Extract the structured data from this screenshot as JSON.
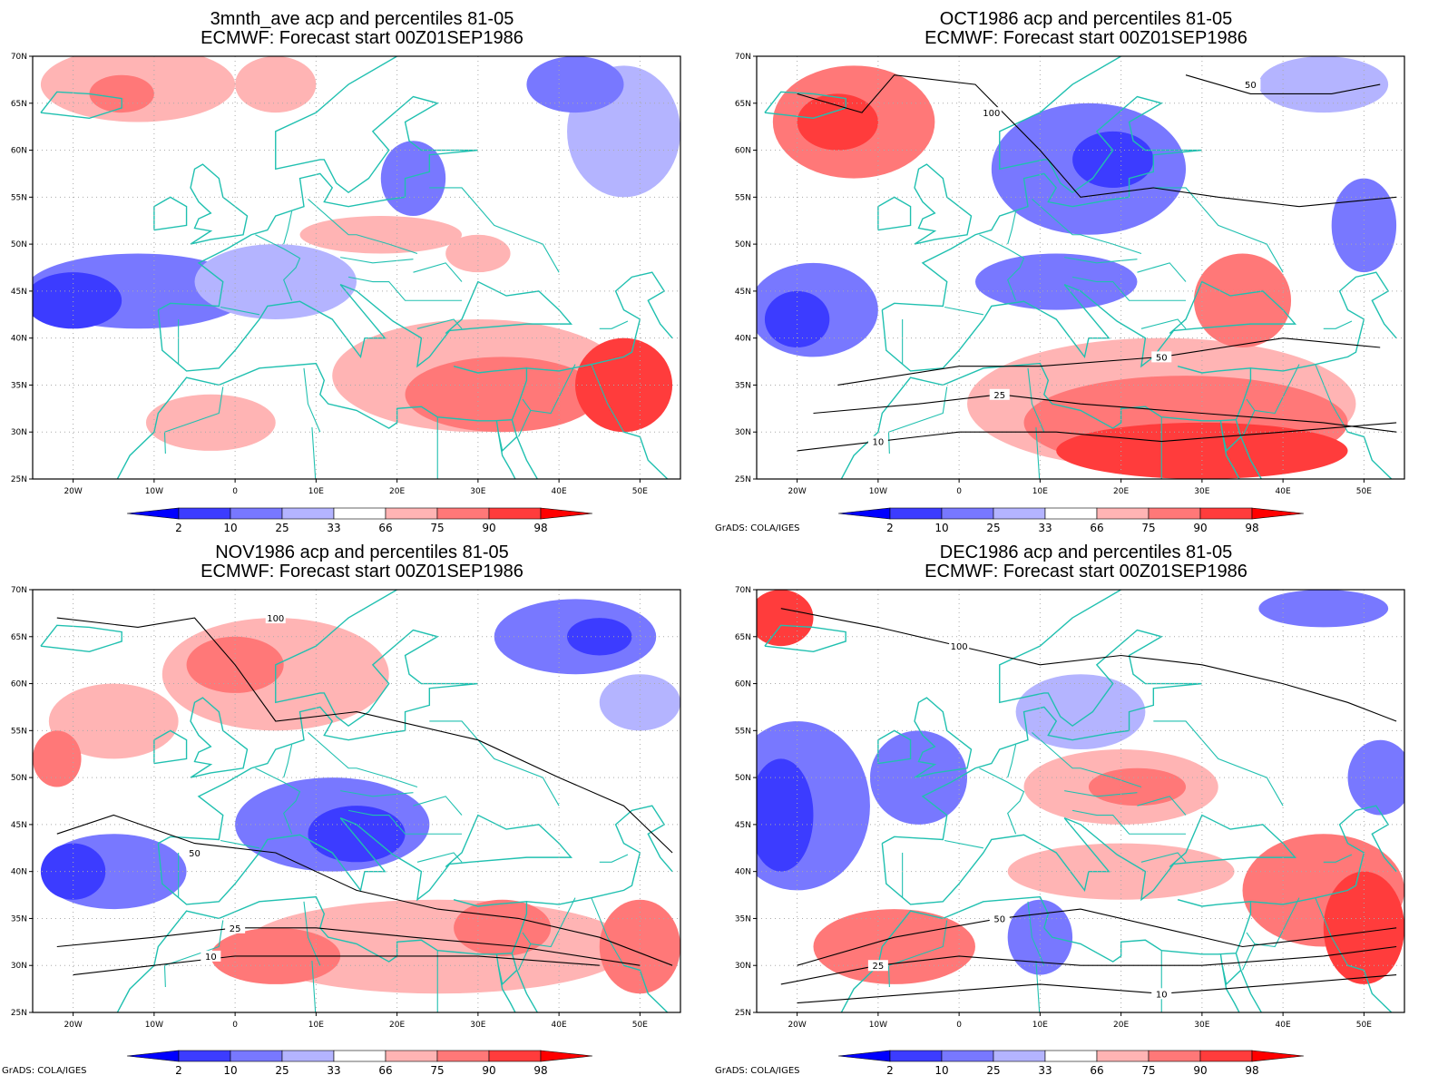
{
  "credit": "GrADS: COLA/IGES",
  "axes": {
    "lat_labels": [
      "70N",
      "65N",
      "60N",
      "55N",
      "50N",
      "45N",
      "40N",
      "35N",
      "30N",
      "25N"
    ],
    "lat_values": [
      70,
      65,
      60,
      55,
      50,
      45,
      40,
      35,
      30,
      25
    ],
    "lon_labels": [
      "20W",
      "10W",
      "0",
      "10E",
      "20E",
      "30E",
      "40E",
      "50E"
    ],
    "lon_values": [
      -20,
      -10,
      0,
      10,
      20,
      30,
      40,
      50
    ],
    "lon_range": [
      -25,
      55
    ],
    "lat_range": [
      25,
      70
    ],
    "grid": "dotted"
  },
  "colorbar": {
    "labels": [
      "2",
      "10",
      "25",
      "33",
      "66",
      "75",
      "90",
      "98"
    ],
    "colors": [
      "#0000ff",
      "#3c3cff",
      "#7878ff",
      "#b4b4ff",
      "#ffffff",
      "#ffb4b4",
      "#ff7878",
      "#ff3c3c",
      "#ff0000"
    ]
  },
  "panels": [
    {
      "title1": "3mnth_ave acp and percentiles 81-05",
      "title2": "ECMWF: Forecast start 00Z01SEP1986",
      "show_credit": false,
      "regions": [
        {
          "lon": -12,
          "lat": 45,
          "rx": 14,
          "ry": 4,
          "color": "#7878ff"
        },
        {
          "lon": -20,
          "lat": 44,
          "rx": 6,
          "ry": 3,
          "color": "#3c3cff"
        },
        {
          "lon": 5,
          "lat": 46,
          "rx": 10,
          "ry": 4,
          "color": "#b4b4ff"
        },
        {
          "lon": 22,
          "lat": 57,
          "rx": 4,
          "ry": 4,
          "color": "#7878ff"
        },
        {
          "lon": 48,
          "lat": 62,
          "rx": 7,
          "ry": 7,
          "color": "#b4b4ff"
        },
        {
          "lon": 42,
          "lat": 67,
          "rx": 6,
          "ry": 3,
          "color": "#7878ff"
        },
        {
          "lon": -12,
          "lat": 67,
          "rx": 12,
          "ry": 4,
          "color": "#ffb4b4"
        },
        {
          "lon": -14,
          "lat": 66,
          "rx": 4,
          "ry": 2,
          "color": "#ff7878"
        },
        {
          "lon": 5,
          "lat": 67,
          "rx": 5,
          "ry": 3,
          "color": "#ffb4b4"
        },
        {
          "lon": 30,
          "lat": 36,
          "rx": 18,
          "ry": 6,
          "color": "#ffb4b4"
        },
        {
          "lon": 33,
          "lat": 34,
          "rx": 12,
          "ry": 4,
          "color": "#ff7878"
        },
        {
          "lon": 48,
          "lat": 35,
          "rx": 6,
          "ry": 5,
          "color": "#ff3c3c"
        },
        {
          "lon": -3,
          "lat": 31,
          "rx": 8,
          "ry": 3,
          "color": "#ffb4b4"
        },
        {
          "lon": 18,
          "lat": 51,
          "rx": 10,
          "ry": 2,
          "color": "#ffb4b4"
        },
        {
          "lon": 30,
          "lat": 49,
          "rx": 4,
          "ry": 2,
          "color": "#ffb4b4"
        }
      ],
      "contours": []
    },
    {
      "title1": "OCT1986 acp and percentiles 81-05",
      "title2": "ECMWF: Forecast start 00Z01SEP1986",
      "show_credit": true,
      "regions": [
        {
          "lon": -13,
          "lat": 63,
          "rx": 10,
          "ry": 6,
          "color": "#ff7878"
        },
        {
          "lon": -15,
          "lat": 63,
          "rx": 5,
          "ry": 3,
          "color": "#ff3c3c"
        },
        {
          "lon": 16,
          "lat": 58,
          "rx": 12,
          "ry": 7,
          "color": "#7878ff"
        },
        {
          "lon": 19,
          "lat": 59,
          "rx": 5,
          "ry": 3,
          "color": "#3c3cff"
        },
        {
          "lon": -18,
          "lat": 43,
          "rx": 8,
          "ry": 5,
          "color": "#7878ff"
        },
        {
          "lon": -20,
          "lat": 42,
          "rx": 4,
          "ry": 3,
          "color": "#3c3cff"
        },
        {
          "lon": 12,
          "lat": 46,
          "rx": 10,
          "ry": 3,
          "color": "#7878ff"
        },
        {
          "lon": 25,
          "lat": 33,
          "rx": 24,
          "ry": 7,
          "color": "#ffb4b4"
        },
        {
          "lon": 28,
          "lat": 31,
          "rx": 20,
          "ry": 5,
          "color": "#ff7878"
        },
        {
          "lon": 30,
          "lat": 28,
          "rx": 18,
          "ry": 3,
          "color": "#ff3c3c"
        },
        {
          "lon": 35,
          "lat": 44,
          "rx": 6,
          "ry": 5,
          "color": "#ff7878"
        },
        {
          "lon": 50,
          "lat": 52,
          "rx": 4,
          "ry": 5,
          "color": "#7878ff"
        },
        {
          "lon": 45,
          "lat": 67,
          "rx": 8,
          "ry": 3,
          "color": "#b4b4ff"
        }
      ],
      "contours": [
        {
          "points": [
            [
              -20,
              66
            ],
            [
              -12,
              64
            ],
            [
              -8,
              68
            ],
            [
              2,
              67
            ],
            [
              10,
              60
            ],
            [
              15,
              55
            ],
            [
              24,
              56
            ],
            [
              32,
              55
            ],
            [
              42,
              54
            ],
            [
              54,
              55
            ]
          ],
          "label": "100",
          "label_at": [
            4,
            64
          ]
        },
        {
          "points": [
            [
              28,
              68
            ],
            [
              36,
              66
            ],
            [
              46,
              66
            ],
            [
              52,
              67
            ]
          ],
          "label": "50",
          "label_at": [
            36,
            67
          ]
        },
        {
          "points": [
            [
              -20,
              28
            ],
            [
              -10,
              29
            ],
            [
              0,
              30
            ],
            [
              12,
              30
            ],
            [
              25,
              29
            ],
            [
              40,
              30
            ],
            [
              54,
              31
            ]
          ],
          "label": "10",
          "label_at": [
            -10,
            29
          ]
        },
        {
          "points": [
            [
              -18,
              32
            ],
            [
              -5,
              33
            ],
            [
              5,
              34
            ],
            [
              15,
              33
            ],
            [
              30,
              32
            ],
            [
              45,
              31
            ],
            [
              54,
              30
            ]
          ],
          "label": "25",
          "label_at": [
            5,
            34
          ]
        },
        {
          "points": [
            [
              -15,
              35
            ],
            [
              0,
              37
            ],
            [
              10,
              37
            ],
            [
              25,
              38
            ],
            [
              40,
              40
            ],
            [
              52,
              39
            ]
          ],
          "label": "50",
          "label_at": [
            25,
            38
          ]
        }
      ]
    },
    {
      "title1": "NOV1986 acp and percentiles 81-05",
      "title2": "ECMWF: Forecast start 00Z01SEP1986",
      "show_credit": true,
      "regions": [
        {
          "lon": 5,
          "lat": 61,
          "rx": 14,
          "ry": 6,
          "color": "#ffb4b4"
        },
        {
          "lon": 0,
          "lat": 62,
          "rx": 6,
          "ry": 3,
          "color": "#ff7878"
        },
        {
          "lon": -15,
          "lat": 56,
          "rx": 8,
          "ry": 4,
          "color": "#ffb4b4"
        },
        {
          "lon": -22,
          "lat": 52,
          "rx": 3,
          "ry": 3,
          "color": "#ff7878"
        },
        {
          "lon": 12,
          "lat": 45,
          "rx": 12,
          "ry": 5,
          "color": "#7878ff"
        },
        {
          "lon": 15,
          "lat": 44,
          "rx": 6,
          "ry": 3,
          "color": "#3c3cff"
        },
        {
          "lon": -15,
          "lat": 40,
          "rx": 9,
          "ry": 4,
          "color": "#7878ff"
        },
        {
          "lon": -20,
          "lat": 40,
          "rx": 4,
          "ry": 3,
          "color": "#3c3cff"
        },
        {
          "lon": 42,
          "lat": 65,
          "rx": 10,
          "ry": 4,
          "color": "#7878ff"
        },
        {
          "lon": 45,
          "lat": 65,
          "rx": 4,
          "ry": 2,
          "color": "#3c3cff"
        },
        {
          "lon": 25,
          "lat": 32,
          "rx": 24,
          "ry": 5,
          "color": "#ffb4b4"
        },
        {
          "lon": 5,
          "lat": 31,
          "rx": 8,
          "ry": 3,
          "color": "#ff7878"
        },
        {
          "lon": 33,
          "lat": 34,
          "rx": 6,
          "ry": 3,
          "color": "#ff7878"
        },
        {
          "lon": 50,
          "lat": 32,
          "rx": 5,
          "ry": 5,
          "color": "#ff7878"
        },
        {
          "lon": 50,
          "lat": 58,
          "rx": 5,
          "ry": 3,
          "color": "#b4b4ff"
        }
      ],
      "contours": [
        {
          "points": [
            [
              -22,
              67
            ],
            [
              -12,
              66
            ],
            [
              -5,
              67
            ],
            [
              0,
              62
            ],
            [
              5,
              56
            ],
            [
              15,
              57
            ],
            [
              30,
              54
            ],
            [
              40,
              50
            ],
            [
              48,
              47
            ],
            [
              54,
              42
            ]
          ],
          "label": "100",
          "label_at": [
            5,
            67
          ]
        },
        {
          "points": [
            [
              -22,
              44
            ],
            [
              -15,
              46
            ],
            [
              -5,
              43
            ],
            [
              5,
              42
            ],
            [
              15,
              38
            ],
            [
              25,
              36
            ],
            [
              35,
              35
            ],
            [
              45,
              33
            ],
            [
              54,
              30
            ]
          ],
          "label": "50",
          "label_at": [
            -5,
            42
          ]
        },
        {
          "points": [
            [
              -22,
              32
            ],
            [
              -10,
              33
            ],
            [
              0,
              34
            ],
            [
              10,
              34
            ],
            [
              22,
              33
            ],
            [
              35,
              32
            ],
            [
              50,
              30
            ]
          ],
          "label": "25",
          "label_at": [
            0,
            34
          ]
        },
        {
          "points": [
            [
              -20,
              29
            ],
            [
              -10,
              30
            ],
            [
              0,
              31
            ],
            [
              15,
              31
            ],
            [
              30,
              31
            ],
            [
              45,
              30
            ]
          ],
          "label": "10",
          "label_at": [
            -3,
            31
          ]
        }
      ]
    },
    {
      "title1": "DEC1986 acp and percentiles 81-05",
      "title2": "ECMWF: Forecast start 00Z01SEP1986",
      "show_credit": true,
      "regions": [
        {
          "lon": -20,
          "lat": 47,
          "rx": 9,
          "ry": 9,
          "color": "#7878ff"
        },
        {
          "lon": -22,
          "lat": 46,
          "rx": 4,
          "ry": 6,
          "color": "#3c3cff"
        },
        {
          "lon": -5,
          "lat": 50,
          "rx": 6,
          "ry": 5,
          "color": "#7878ff"
        },
        {
          "lon": -22,
          "lat": 67,
          "rx": 4,
          "ry": 3,
          "color": "#ff3c3c"
        },
        {
          "lon": 15,
          "lat": 57,
          "rx": 8,
          "ry": 4,
          "color": "#b4b4ff"
        },
        {
          "lon": 45,
          "lat": 68,
          "rx": 8,
          "ry": 2,
          "color": "#7878ff"
        },
        {
          "lon": 20,
          "lat": 49,
          "rx": 12,
          "ry": 4,
          "color": "#ffb4b4"
        },
        {
          "lon": 22,
          "lat": 49,
          "rx": 6,
          "ry": 2,
          "color": "#ff7878"
        },
        {
          "lon": 20,
          "lat": 40,
          "rx": 14,
          "ry": 3,
          "color": "#ffb4b4"
        },
        {
          "lon": 45,
          "lat": 38,
          "rx": 10,
          "ry": 6,
          "color": "#ff7878"
        },
        {
          "lon": 50,
          "lat": 34,
          "rx": 5,
          "ry": 6,
          "color": "#ff3c3c"
        },
        {
          "lon": -8,
          "lat": 32,
          "rx": 10,
          "ry": 4,
          "color": "#ff7878"
        },
        {
          "lon": 10,
          "lat": 33,
          "rx": 4,
          "ry": 4,
          "color": "#7878ff"
        },
        {
          "lon": 52,
          "lat": 50,
          "rx": 4,
          "ry": 4,
          "color": "#7878ff"
        }
      ],
      "contours": [
        {
          "points": [
            [
              -22,
              68
            ],
            [
              -10,
              66
            ],
            [
              0,
              64
            ],
            [
              10,
              62
            ],
            [
              20,
              63
            ],
            [
              30,
              62
            ],
            [
              40,
              60
            ],
            [
              48,
              58
            ],
            [
              54,
              56
            ]
          ],
          "label": "100",
          "label_at": [
            0,
            64
          ]
        },
        {
          "points": [
            [
              -20,
              30
            ],
            [
              -8,
              33
            ],
            [
              5,
              35
            ],
            [
              15,
              36
            ],
            [
              25,
              34
            ],
            [
              35,
              32
            ],
            [
              45,
              33
            ],
            [
              54,
              34
            ]
          ],
          "label": "50",
          "label_at": [
            5,
            35
          ]
        },
        {
          "points": [
            [
              -22,
              28
            ],
            [
              -10,
              30
            ],
            [
              0,
              31
            ],
            [
              15,
              30
            ],
            [
              30,
              30
            ],
            [
              45,
              31
            ],
            [
              54,
              32
            ]
          ],
          "label": "25",
          "label_at": [
            -10,
            30
          ]
        },
        {
          "points": [
            [
              -20,
              26
            ],
            [
              -5,
              27
            ],
            [
              10,
              28
            ],
            [
              25,
              27
            ],
            [
              40,
              28
            ],
            [
              54,
              29
            ]
          ],
          "label": "10",
          "label_at": [
            25,
            27
          ]
        }
      ]
    }
  ]
}
